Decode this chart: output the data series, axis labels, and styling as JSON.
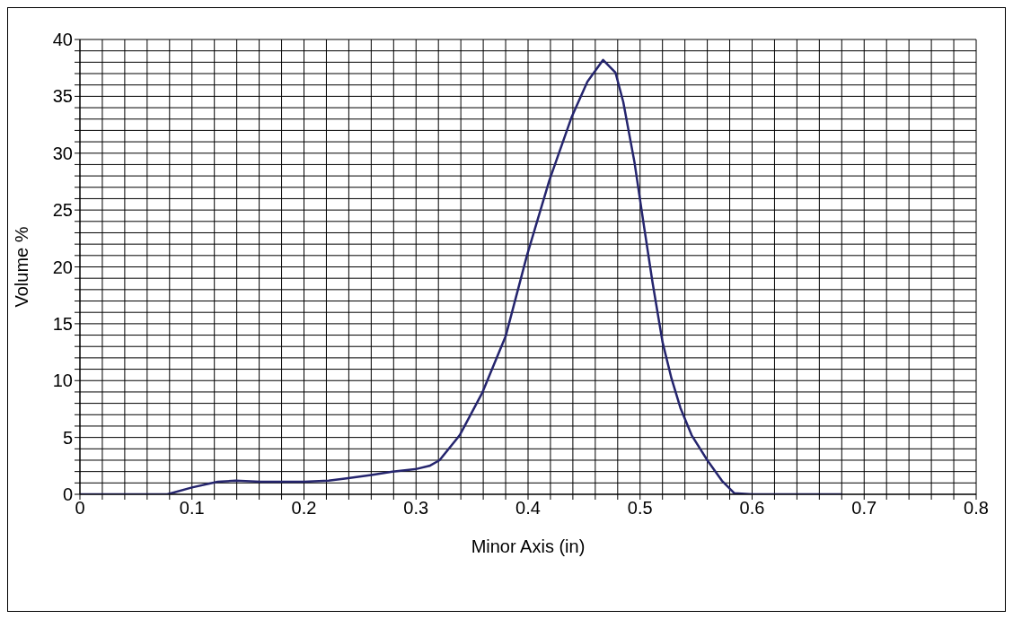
{
  "chart_data": {
    "type": "line",
    "xlabel": "Minor Axis (in)",
    "ylabel": "Volume %",
    "x": [
      0,
      0.04,
      0.078,
      0.1,
      0.123,
      0.139,
      0.161,
      0.2,
      0.222,
      0.238,
      0.26,
      0.279,
      0.299,
      0.312,
      0.321,
      0.339,
      0.359,
      0.38,
      0.399,
      0.419,
      0.439,
      0.453,
      0.467,
      0.478,
      0.485,
      0.495,
      0.503,
      0.511,
      0.52,
      0.528,
      0.536,
      0.546,
      0.56,
      0.573,
      0.584,
      0.6,
      0.64,
      0.68
    ],
    "series": [
      {
        "color": "#25256e",
        "values": [
          0,
          0,
          0,
          0.6,
          1.1,
          1.2,
          1.1,
          1.1,
          1.2,
          1.4,
          1.7,
          2.0,
          2.2,
          2.5,
          3.0,
          5.2,
          8.9,
          13.9,
          21.0,
          27.6,
          33.2,
          36.3,
          38.2,
          37.1,
          34.5,
          29.2,
          23.9,
          18.7,
          13.4,
          10.2,
          7.6,
          5.2,
          3.0,
          1.2,
          0.1,
          0,
          0,
          0
        ]
      }
    ],
    "xlim": [
      0,
      0.8
    ],
    "ylim": [
      0,
      40
    ],
    "xticks": [
      0,
      {
        "value": 0.02,
        "label": null
      },
      {
        "value": 0.04,
        "label": null
      },
      {
        "value": 0.06,
        "label": null
      },
      {
        "value": 0.08,
        "label": null
      },
      0.1,
      {
        "value": 0.12,
        "label": null
      },
      {
        "value": 0.14,
        "label": null
      },
      {
        "value": 0.16,
        "label": null
      },
      {
        "value": 0.18,
        "label": null
      },
      0.2,
      {
        "value": 0.22,
        "label": null
      },
      {
        "value": 0.24,
        "label": null
      },
      {
        "value": 0.26,
        "label": null
      },
      {
        "value": 0.28,
        "label": null
      },
      0.3,
      {
        "value": 0.32,
        "label": null
      },
      {
        "value": 0.34,
        "label": null
      },
      {
        "value": 0.36,
        "label": null
      },
      {
        "value": 0.38,
        "label": null
      },
      0.4,
      {
        "value": 0.42,
        "label": null
      },
      {
        "value": 0.44,
        "label": null
      },
      {
        "value": 0.46,
        "label": null
      },
      {
        "value": 0.48,
        "label": null
      },
      0.5,
      {
        "value": 0.52,
        "label": null
      },
      {
        "value": 0.54,
        "label": null
      },
      {
        "value": 0.56,
        "label": null
      },
      {
        "value": 0.58,
        "label": null
      },
      0.6,
      {
        "value": 0.62,
        "label": null
      },
      {
        "value": 0.64,
        "label": null
      },
      {
        "value": 0.66,
        "label": null
      },
      {
        "value": 0.68,
        "label": null
      },
      0.7,
      {
        "value": 0.72,
        "label": null
      },
      {
        "value": 0.74,
        "label": null
      },
      {
        "value": 0.76,
        "label": null
      },
      {
        "value": 0.78,
        "label": null
      },
      0.8
    ],
    "yticks": [
      0,
      {
        "value": 1,
        "label": null
      },
      {
        "value": 2,
        "label": null
      },
      {
        "value": 3,
        "label": null
      },
      {
        "value": 4,
        "label": null
      },
      5,
      {
        "value": 6,
        "label": null
      },
      {
        "value": 7,
        "label": null
      },
      {
        "value": 8,
        "label": null
      },
      {
        "value": 9,
        "label": null
      },
      10,
      {
        "value": 11,
        "label": null
      },
      {
        "value": 12,
        "label": null
      },
      {
        "value": 13,
        "label": null
      },
      {
        "value": 14,
        "label": null
      },
      15,
      {
        "value": 16,
        "label": null
      },
      {
        "value": 17,
        "label": null
      },
      {
        "value": 18,
        "label": null
      },
      {
        "value": 19,
        "label": null
      },
      20,
      {
        "value": 21,
        "label": null
      },
      {
        "value": 22,
        "label": null
      },
      {
        "value": 23,
        "label": null
      },
      {
        "value": 24,
        "label": null
      },
      25,
      {
        "value": 26,
        "label": null
      },
      {
        "value": 27,
        "label": null
      },
      {
        "value": 28,
        "label": null
      },
      {
        "value": 29,
        "label": null
      },
      30,
      {
        "value": 31,
        "label": null
      },
      {
        "value": 32,
        "label": null
      },
      {
        "value": 33,
        "label": null
      },
      {
        "value": 34,
        "label": null
      },
      35,
      {
        "value": 36,
        "label": null
      },
      {
        "value": 37,
        "label": null
      },
      {
        "value": 38,
        "label": null
      },
      {
        "value": 39,
        "label": null
      },
      40
    ],
    "grid": true,
    "legend": false,
    "marker": "none",
    "line_style": "solid"
  }
}
